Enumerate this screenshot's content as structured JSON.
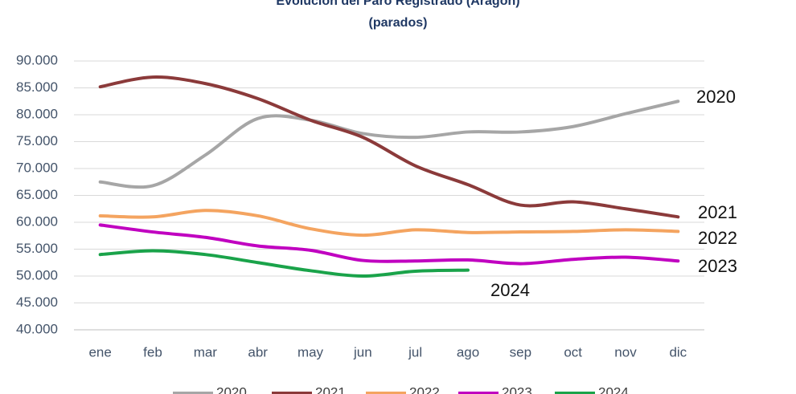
{
  "chart_data": {
    "type": "line",
    "title": "Evolución del Paro Registrado (Aragón)",
    "subtitle": "(parados)",
    "categories": [
      "ene",
      "feb",
      "mar",
      "abr",
      "may",
      "jun",
      "jul",
      "ago",
      "sep",
      "oct",
      "nov",
      "dic"
    ],
    "series": [
      {
        "name": "2020",
        "color": "#a6a6a6",
        "values": [
          67500,
          66800,
          72500,
          79300,
          79000,
          76500,
          75800,
          76800,
          76800,
          77800,
          80200,
          82500
        ]
      },
      {
        "name": "2021",
        "color": "#8b3a3a",
        "values": [
          85200,
          87000,
          85800,
          83000,
          79000,
          75800,
          70500,
          67000,
          63200,
          63800,
          62500,
          61000
        ]
      },
      {
        "name": "2022",
        "color": "#f4a460",
        "values": [
          61200,
          61000,
          62200,
          61200,
          58800,
          57600,
          58600,
          58100,
          58200,
          58300,
          58600,
          58300
        ]
      },
      {
        "name": "2023",
        "color": "#c000c0",
        "values": [
          59500,
          58200,
          57200,
          55600,
          54800,
          52900,
          52800,
          53000,
          52300,
          53100,
          53500,
          52800
        ]
      },
      {
        "name": "2024",
        "color": "#1aa34a",
        "values": [
          54000,
          54700,
          54000,
          52500,
          51000,
          50000,
          50900,
          51100,
          null,
          null,
          null,
          null
        ]
      }
    ],
    "ylim": [
      40000,
      90000
    ],
    "yticks": [
      {
        "value": 40000,
        "label": "40.000"
      },
      {
        "value": 45000,
        "label": "45.000"
      },
      {
        "value": 50000,
        "label": "50.000"
      },
      {
        "value": 55000,
        "label": "55.000"
      },
      {
        "value": 60000,
        "label": "60.000"
      },
      {
        "value": 65000,
        "label": "65.000"
      },
      {
        "value": 70000,
        "label": "70.000"
      },
      {
        "value": 75000,
        "label": "75.000"
      },
      {
        "value": 80000,
        "label": "80.000"
      },
      {
        "value": 85000,
        "label": "85.000"
      },
      {
        "value": 90000,
        "label": "90.000"
      }
    ],
    "grid": true
  }
}
